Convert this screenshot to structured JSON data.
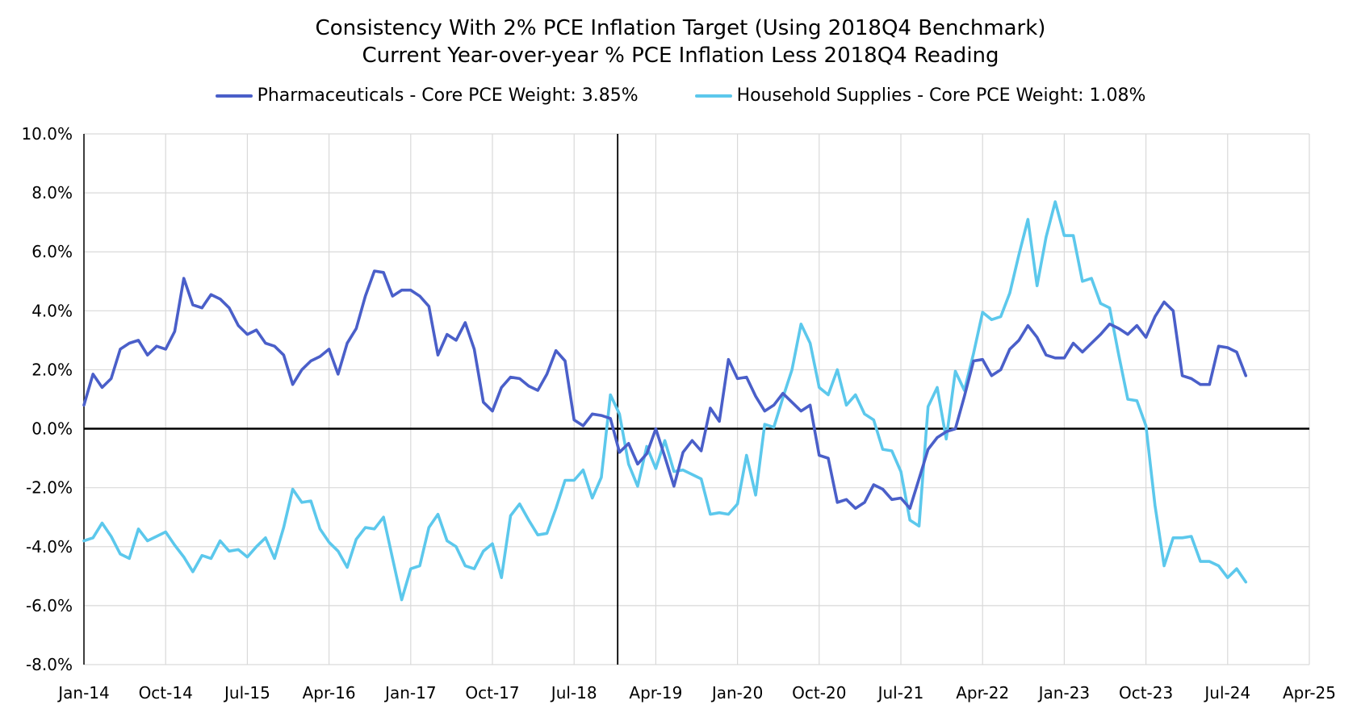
{
  "chart_data": {
    "type": "line",
    "title": "Consistency With 2% PCE Inflation Target (Using 2018Q4 Benchmark)",
    "subtitle": "Current Year-over-year % PCE Inflation Less 2018Q4 Reading",
    "xlabel": "",
    "ylabel": "",
    "ylim": [
      -8,
      10
    ],
    "y_ticks": [
      "10.0%",
      "8.0%",
      "6.0%",
      "4.0%",
      "2.0%",
      "0.0%",
      "-2.0%",
      "-4.0%",
      "-6.0%",
      "-8.0%"
    ],
    "x_tick_labels": [
      "Jan-14",
      "Oct-14",
      "Jul-15",
      "Apr-16",
      "Jan-17",
      "Oct-17",
      "Jul-18",
      "Apr-19",
      "Jan-20",
      "Oct-20",
      "Jul-21",
      "Apr-22",
      "Jan-23",
      "Oct-23",
      "Jul-24",
      "Apr-25"
    ],
    "x_start": "Jan-14",
    "x_end": "Apr-25",
    "benchmark_line": "2018Q4",
    "grid": true,
    "legend_position": "top",
    "series": [
      {
        "name": "Pharmaceuticals - Core PCE Weight: 3.85%",
        "color": "#4a5fc9",
        "values": [
          0.8,
          1.85,
          1.4,
          1.7,
          2.7,
          2.9,
          3.0,
          2.5,
          2.8,
          2.7,
          3.3,
          5.1,
          4.2,
          4.1,
          4.55,
          4.4,
          4.1,
          3.5,
          3.2,
          3.35,
          2.9,
          2.8,
          2.5,
          1.5,
          2.0,
          2.3,
          2.45,
          2.7,
          1.85,
          2.9,
          3.4,
          4.5,
          5.35,
          5.3,
          4.5,
          4.7,
          4.7,
          4.5,
          4.15,
          2.5,
          3.2,
          3.0,
          3.6,
          2.7,
          0.9,
          0.6,
          1.4,
          1.75,
          1.7,
          1.45,
          1.3,
          1.85,
          2.65,
          2.3,
          0.3,
          0.1,
          0.5,
          0.45,
          0.35,
          -0.8,
          -0.5,
          -1.2,
          -0.85,
          0.0,
          -0.95,
          -1.95,
          -0.8,
          -0.4,
          -0.75,
          0.7,
          0.25,
          2.35,
          1.7,
          1.75,
          1.1,
          0.6,
          0.8,
          1.2,
          0.9,
          0.6,
          0.8,
          -0.9,
          -1.0,
          -2.5,
          -2.4,
          -2.7,
          -2.5,
          -1.9,
          -2.05,
          -2.4,
          -2.35,
          -2.7,
          -1.7,
          -0.7,
          -0.3,
          -0.1,
          0.0,
          1.1,
          2.3,
          2.35,
          1.8,
          2.0,
          2.7,
          3.0,
          3.5,
          3.1,
          2.5,
          2.4,
          2.4,
          2.9,
          2.6,
          2.9,
          3.2,
          3.55,
          3.4,
          3.2,
          3.5,
          3.1,
          3.8,
          4.3,
          4.0,
          1.8,
          1.7,
          1.5,
          1.5,
          2.8,
          2.75,
          2.6,
          1.8
        ]
      },
      {
        "name": "Household Supplies - Core PCE Weight: 1.08%",
        "color": "#5cc8ec",
        "values": [
          -3.8,
          -3.7,
          -3.2,
          -3.65,
          -4.25,
          -4.4,
          -3.4,
          -3.8,
          -3.65,
          -3.5,
          -3.95,
          -4.35,
          -4.85,
          -4.3,
          -4.4,
          -3.8,
          -4.15,
          -4.1,
          -4.35,
          -4.0,
          -3.7,
          -4.4,
          -3.35,
          -2.05,
          -2.5,
          -2.45,
          -3.4,
          -3.85,
          -4.15,
          -4.7,
          -3.75,
          -3.35,
          -3.4,
          -3.0,
          -4.4,
          -5.8,
          -4.75,
          -4.65,
          -3.35,
          -2.9,
          -3.8,
          -4.0,
          -4.65,
          -4.75,
          -4.15,
          -3.9,
          -5.05,
          -2.95,
          -2.55,
          -3.1,
          -3.6,
          -3.55,
          -2.7,
          -1.75,
          -1.75,
          -1.4,
          -2.35,
          -1.65,
          1.15,
          0.5,
          -1.2,
          -1.95,
          -0.6,
          -1.35,
          -0.4,
          -1.45,
          -1.4,
          -1.55,
          -1.7,
          -2.9,
          -2.85,
          -2.9,
          -2.55,
          -0.9,
          -2.25,
          0.15,
          0.05,
          1.05,
          2.0,
          3.55,
          2.9,
          1.4,
          1.15,
          2.0,
          0.8,
          1.15,
          0.5,
          0.3,
          -0.7,
          -0.75,
          -1.45,
          -3.1,
          -3.3,
          0.75,
          1.4,
          -0.35,
          1.95,
          1.3,
          2.55,
          3.95,
          3.7,
          3.8,
          4.6,
          5.9,
          7.1,
          4.85,
          6.5,
          7.7,
          6.55,
          6.55,
          5.0,
          5.1,
          4.25,
          4.1,
          2.5,
          1.0,
          0.95,
          0.1,
          -2.6,
          -4.65,
          -3.7,
          -3.7,
          -3.65,
          -4.5,
          -4.5,
          -4.65,
          -5.05,
          -4.75,
          -5.2
        ]
      }
    ]
  }
}
